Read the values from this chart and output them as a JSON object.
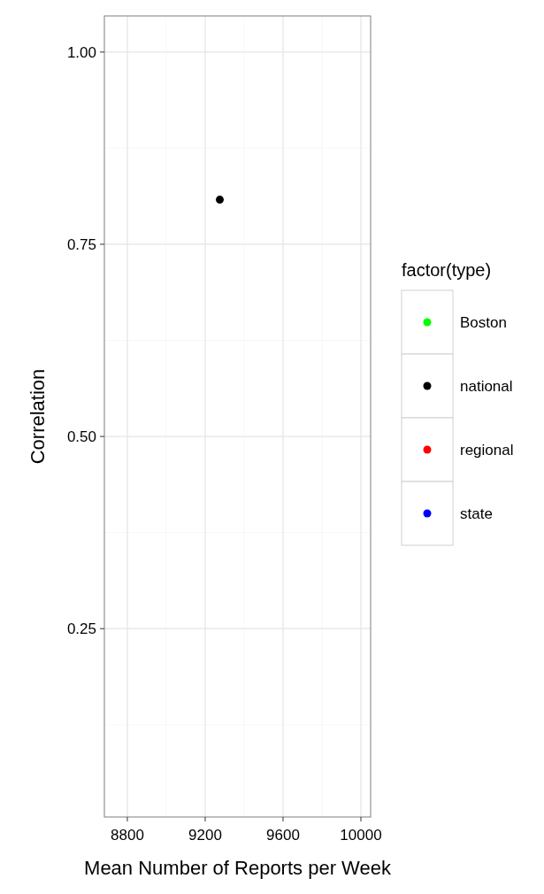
{
  "chart_data": {
    "type": "scatter",
    "xlabel": "Mean Number of Reports per Week",
    "ylabel": "Correlation",
    "legend_title": "factor(type)",
    "legend": "right",
    "grid": true,
    "marker": "circle",
    "xlim": [
      8682,
      10050
    ],
    "xticks": [
      8800,
      9200,
      9600,
      10000
    ],
    "ylim": [
      0.005,
      1.047
    ],
    "yticks": [
      0.25,
      {
        "value": 0.5,
        "label": "0.50"
      },
      0.75,
      {
        "value": 1,
        "label": "1.00"
      }
    ],
    "series": [
      {
        "name": "Boston",
        "color": "#00ff00"
      },
      {
        "name": "national",
        "color": "#000000",
        "x": [
          9275
        ],
        "values": [
          0.808
        ]
      },
      {
        "name": "regional",
        "color": "#ff0000"
      },
      {
        "name": "state",
        "color": "#0000ff"
      }
    ]
  }
}
